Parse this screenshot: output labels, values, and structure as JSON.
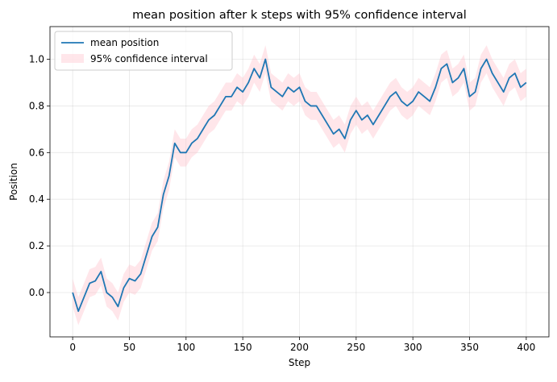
{
  "chart_data": {
    "type": "line",
    "title": "mean position after k steps with 95% confidence interval",
    "xlabel": "Step",
    "ylabel": "Position",
    "xlim": [
      -20,
      420
    ],
    "ylim": [
      -0.19,
      1.14
    ],
    "xticks": [
      0,
      50,
      100,
      150,
      200,
      250,
      300,
      350,
      400
    ],
    "yticks": [
      0.0,
      0.2,
      0.4,
      0.6,
      0.8,
      1.0
    ],
    "xtick_labels": [
      "0",
      "50",
      "100",
      "150",
      "200",
      "250",
      "300",
      "350",
      "400"
    ],
    "ytick_labels": [
      "0.0",
      "0.2",
      "0.4",
      "0.6",
      "0.8",
      "1.0"
    ],
    "grid": true,
    "legend_position": "upper-left",
    "colors": {
      "line": "#1f77b4",
      "band": "#ffc0cb",
      "grid": "#b0b0b0",
      "axis": "#000000"
    },
    "series": [
      {
        "name": "mean position",
        "kind": "line",
        "x": [
          0,
          5,
          10,
          15,
          20,
          25,
          30,
          35,
          40,
          45,
          50,
          55,
          60,
          65,
          70,
          75,
          80,
          85,
          90,
          95,
          100,
          105,
          110,
          115,
          120,
          125,
          130,
          135,
          140,
          145,
          150,
          155,
          160,
          165,
          170,
          175,
          180,
          185,
          190,
          195,
          200,
          205,
          210,
          215,
          220,
          225,
          230,
          235,
          240,
          245,
          250,
          255,
          260,
          265,
          270,
          275,
          280,
          285,
          290,
          295,
          300,
          305,
          310,
          315,
          320,
          325,
          330,
          335,
          340,
          345,
          350,
          355,
          360,
          365,
          370,
          375,
          380,
          385,
          390,
          395,
          400
        ],
        "y": [
          0.0,
          -0.08,
          -0.02,
          0.04,
          0.05,
          0.09,
          0.0,
          -0.02,
          -0.06,
          0.02,
          0.06,
          0.05,
          0.08,
          0.16,
          0.24,
          0.28,
          0.42,
          0.5,
          0.64,
          0.6,
          0.6,
          0.64,
          0.66,
          0.7,
          0.74,
          0.76,
          0.8,
          0.84,
          0.84,
          0.88,
          0.86,
          0.9,
          0.96,
          0.92,
          1.0,
          0.88,
          0.86,
          0.84,
          0.88,
          0.86,
          0.88,
          0.82,
          0.8,
          0.8,
          0.76,
          0.72,
          0.68,
          0.7,
          0.66,
          0.74,
          0.78,
          0.74,
          0.76,
          0.72,
          0.76,
          0.8,
          0.84,
          0.86,
          0.82,
          0.8,
          0.82,
          0.86,
          0.84,
          0.82,
          0.88,
          0.96,
          0.98,
          0.9,
          0.92,
          0.96,
          0.84,
          0.86,
          0.96,
          1.0,
          0.94,
          0.9,
          0.86,
          0.92,
          0.94,
          0.88,
          0.9
        ]
      },
      {
        "name": "95% confidence interval",
        "kind": "band",
        "halfwidth": 0.06
      }
    ]
  }
}
